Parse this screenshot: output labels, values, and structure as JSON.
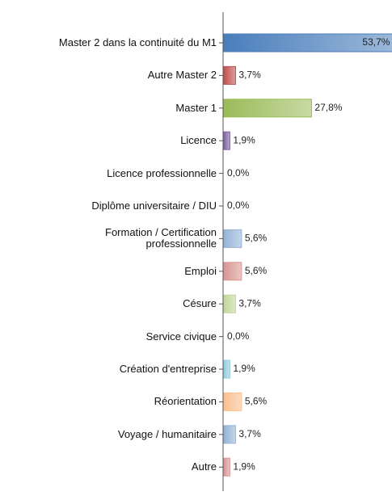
{
  "chart_data": {
    "type": "bar",
    "orientation": "horizontal",
    "categories": [
      "Master 2 dans la continuité du M1",
      "Autre Master 2",
      "Master 1",
      "Licence",
      "Licence professionnelle",
      "Diplôme universitaire / DIU",
      "Formation / Certification\nprofessionnelle",
      "Emploi",
      "Césure",
      "Service civique",
      "Création d'entreprise",
      "Réorientation",
      "Voyage / humanitaire",
      "Autre"
    ],
    "values": [
      53.7,
      3.7,
      27.8,
      1.9,
      0,
      0,
      5.6,
      5.6,
      3.7,
      0,
      1.9,
      5.6,
      3.7,
      1.9
    ],
    "value_labels": [
      "53,7%",
      "3,7%",
      "27,8%",
      "1,9%",
      "0,0%",
      "0,0%",
      "5,6%",
      "5,6%",
      "3,7%",
      "0,0%",
      "1,9%",
      "5,6%",
      "3,7%",
      "1,9%"
    ],
    "colors": [
      "#4a7ebb",
      "#c0504d",
      "#9bbb59",
      "#8064a2",
      "#4bacc6",
      "#f79646",
      "#95b3d7",
      "#d99694",
      "#c3d69b",
      "#b3a2c7",
      "#93cddd",
      "#fac08f",
      "#95b3d7",
      "#d99694"
    ]
  }
}
